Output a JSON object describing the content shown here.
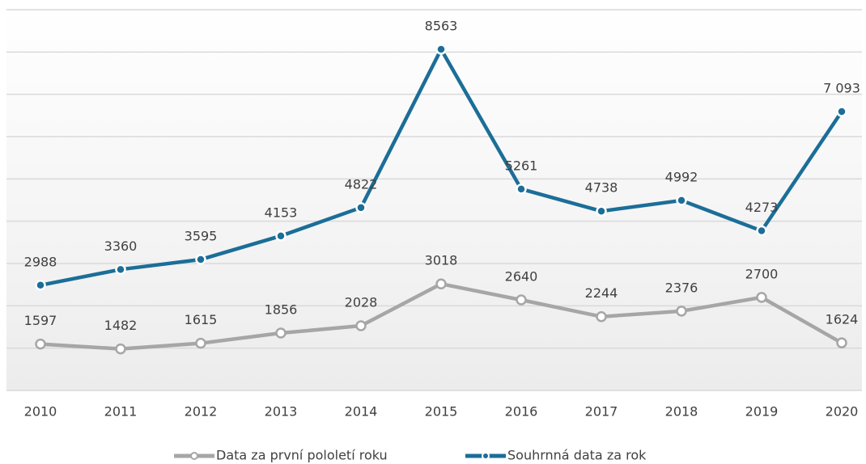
{
  "chart_data": {
    "type": "line",
    "categories": [
      "2010",
      "2011",
      "2012",
      "2013",
      "2014",
      "2015",
      "2016",
      "2017",
      "2018",
      "2019",
      "2020"
    ],
    "series": [
      {
        "name": "Data za první pololetí roku",
        "color": "#a6a6a6",
        "values": [
          1597,
          1482,
          1615,
          1856,
          2028,
          3018,
          2640,
          2244,
          2376,
          2700,
          1624
        ]
      },
      {
        "name": "Souhrnná data za rok",
        "color": "#1b6e98",
        "values": [
          2988,
          3360,
          3595,
          4153,
          4822,
          8563,
          5261,
          4738,
          4992,
          4273,
          7093
        ],
        "value_labels": [
          "2988",
          "3360",
          "3595",
          "4153",
          "4822",
          "8563",
          "5261",
          "4738",
          "4992",
          "4273",
          "7 093"
        ]
      }
    ],
    "ylim": [
      500,
      9500
    ],
    "yticks": [
      500,
      1500,
      2500,
      3500,
      4500,
      5500,
      6500,
      7500,
      8500,
      9500
    ],
    "grid": true,
    "legend": "bottom"
  }
}
